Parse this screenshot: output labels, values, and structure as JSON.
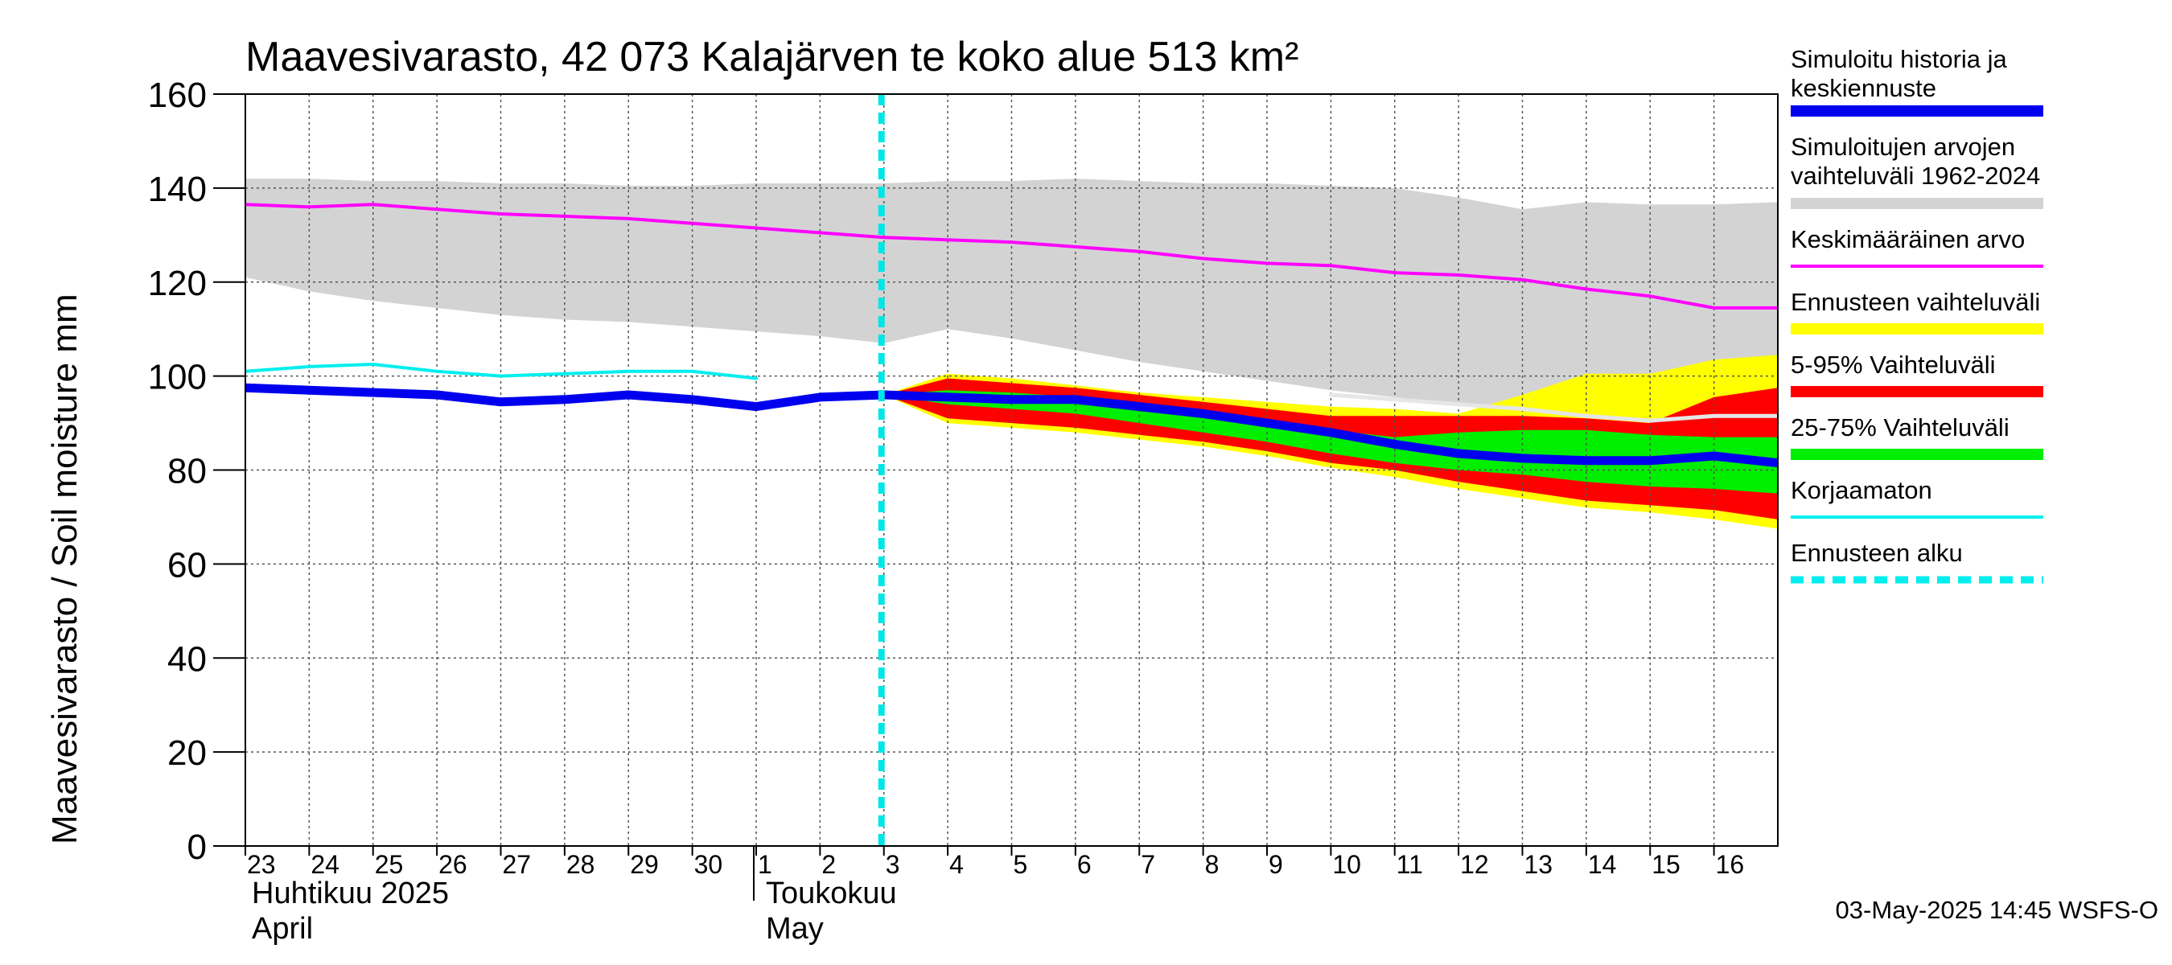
{
  "chart_data": {
    "type": "area",
    "title": "Maavesivarasto, 42 073 Kalajärven te koko alue 513 km²",
    "ylabel": "Maavesivarasto / Soil moisture   mm",
    "ylim": [
      0,
      160
    ],
    "yticks": [
      0,
      20,
      40,
      60,
      80,
      100,
      120,
      140,
      160
    ],
    "x_start_day_index": 0,
    "x_end_day_index": 24,
    "xtick_labels": [
      "23",
      "24",
      "25",
      "26",
      "27",
      "28",
      "29",
      "30",
      "1",
      "2",
      "3",
      "4",
      "5",
      "6",
      "7",
      "8",
      "9",
      "10",
      "11",
      "12",
      "13",
      "14",
      "15",
      "16"
    ],
    "month_labels": [
      {
        "fi": "Huhtikuu  2025",
        "en": "April",
        "start_index": 0
      },
      {
        "fi": "Toukokuu",
        "en": "May",
        "start_index": 8
      }
    ],
    "month_separator_index": 8,
    "forecast_start_index": 10,
    "grid": true,
    "timestamp": "03-May-2025 14:45 WSFS-O",
    "series": [
      {
        "name": "Simuloitujen arvojen vaihteluväli 1962-2024",
        "kind": "band",
        "color": "#d3d3d3",
        "x": [
          0,
          1,
          2,
          3,
          4,
          5,
          6,
          7,
          8,
          9,
          10,
          11,
          12,
          13,
          14,
          15,
          16,
          17,
          18,
          19,
          20,
          21,
          22,
          23,
          24
        ],
        "upper": [
          142,
          142,
          141.5,
          141.5,
          141,
          141,
          140.5,
          140.5,
          141,
          141,
          141,
          141.5,
          141.5,
          142,
          141.5,
          141,
          141,
          140.5,
          140,
          138,
          135.5,
          137,
          136.5,
          136.5,
          137
        ],
        "lower": [
          121,
          118,
          116,
          114.5,
          113,
          112,
          111.5,
          110.5,
          109.5,
          108.5,
          107,
          110,
          108,
          105.5,
          103,
          101,
          99,
          97,
          95.5,
          94,
          93,
          92,
          90.5,
          92,
          93
        ]
      },
      {
        "name": "Ennusteen vaihteluväli",
        "kind": "band",
        "color": "#ffff00",
        "x": [
          10,
          11,
          12,
          13,
          14,
          15,
          16,
          17,
          18,
          19,
          20,
          21,
          22,
          23,
          24
        ],
        "upper": [
          96,
          100.5,
          99.5,
          98,
          96.5,
          95.5,
          94.5,
          93.5,
          93,
          92,
          96,
          100.5,
          100.5,
          103.5,
          104.5
        ],
        "lower": [
          96,
          90,
          89,
          88,
          86.5,
          85,
          83,
          80.5,
          78.5,
          76,
          74,
          72,
          71,
          69.5,
          67.5
        ]
      },
      {
        "name": "5-95% Vaihteluväli",
        "kind": "band",
        "color": "#ff0000",
        "x": [
          10,
          11,
          12,
          13,
          14,
          15,
          16,
          17,
          18,
          19,
          20,
          21,
          22,
          23,
          24
        ],
        "upper": [
          96,
          99.5,
          98.5,
          97.5,
          96,
          94.5,
          93,
          91.5,
          91.5,
          91.5,
          91.5,
          91,
          90,
          95.5,
          97.5
        ],
        "lower": [
          96,
          91,
          90,
          89,
          87.5,
          86,
          84,
          81.5,
          80,
          77.5,
          75.5,
          73.5,
          72.5,
          71.5,
          69.5
        ]
      },
      {
        "name": "25-75% Vaihteluväli",
        "kind": "band",
        "color": "#00ee00",
        "x": [
          10,
          11,
          12,
          13,
          14,
          15,
          16,
          17,
          18,
          19,
          20,
          21,
          22,
          23,
          24
        ],
        "upper": [
          96,
          97,
          96.5,
          95.5,
          94,
          92.5,
          90.5,
          88.5,
          87,
          88,
          88.5,
          88.5,
          87.5,
          87,
          87
        ],
        "lower": [
          96,
          94,
          93,
          92,
          90,
          88,
          86,
          83.5,
          81.5,
          80,
          79,
          77.5,
          76.5,
          76,
          75
        ]
      },
      {
        "name": "Keskimääräinen arvo",
        "kind": "line",
        "color": "#ff00ff",
        "width": 4,
        "x": [
          0,
          1,
          2,
          3,
          4,
          5,
          6,
          7,
          8,
          9,
          10,
          11,
          12,
          13,
          14,
          15,
          16,
          17,
          18,
          19,
          20,
          21,
          22,
          23,
          24
        ],
        "y": [
          136.5,
          136,
          136.5,
          135.5,
          134.5,
          134,
          133.5,
          132.5,
          131.5,
          130.5,
          129.5,
          129,
          128.5,
          127.5,
          126.5,
          125,
          124,
          123.5,
          122,
          121.5,
          120.5,
          118.5,
          117,
          114.5,
          114.5
        ]
      },
      {
        "name": "Median forecast of simulated range",
        "kind": "line",
        "color": "#e6e6e6",
        "width": 5,
        "x": [
          17,
          18,
          19,
          20,
          21,
          22,
          23,
          24
        ],
        "y": [
          96,
          95,
          94,
          93,
          91.5,
          90.5,
          91.5,
          91.5
        ]
      },
      {
        "name": "Korjaamaton",
        "kind": "line",
        "color": "#00eeee",
        "width": 4,
        "x": [
          0,
          1,
          2,
          3,
          4,
          5,
          6,
          7,
          8
        ],
        "y": [
          101,
          102,
          102.5,
          101,
          100,
          100.5,
          101,
          101,
          99.5
        ]
      },
      {
        "name": "Simuloitu historia ja keskiennuste",
        "kind": "line",
        "color": "#0000ee",
        "width": 11,
        "x": [
          0,
          1,
          2,
          3,
          4,
          5,
          6,
          7,
          8,
          9,
          10,
          11,
          12,
          13,
          14,
          15,
          16,
          17,
          18,
          19,
          20,
          21,
          22,
          23,
          24
        ],
        "y": [
          97.5,
          97,
          96.5,
          96,
          94.5,
          95,
          96,
          95,
          93.5,
          95.5,
          96,
          95.5,
          95,
          95,
          93.5,
          92,
          90,
          88,
          85.5,
          83.5,
          82.5,
          82,
          82,
          83,
          81.5
        ]
      }
    ],
    "legend": [
      {
        "label": "Simuloitu historia ja keskiennuste",
        "color": "#0000ee",
        "style": "thick"
      },
      {
        "label": "Simuloitujen arvojen vaihteluväli 1962-2024",
        "color": "#d3d3d3",
        "style": "thick"
      },
      {
        "label": "Keskimääräinen arvo",
        "color": "#ff00ff",
        "style": "thin"
      },
      {
        "label": "Ennusteen vaihteluväli",
        "color": "#ffff00",
        "style": "thick"
      },
      {
        "label": "5-95% Vaihteluväli",
        "color": "#ff0000",
        "style": "thick"
      },
      {
        "label": "25-75% Vaihteluväli",
        "color": "#00ee00",
        "style": "thick"
      },
      {
        "label": "Korjaamaton",
        "color": "#00eeee",
        "style": "thin"
      },
      {
        "label": "Ennusteen alku",
        "color": "#00eeee",
        "style": "dashed"
      }
    ]
  }
}
